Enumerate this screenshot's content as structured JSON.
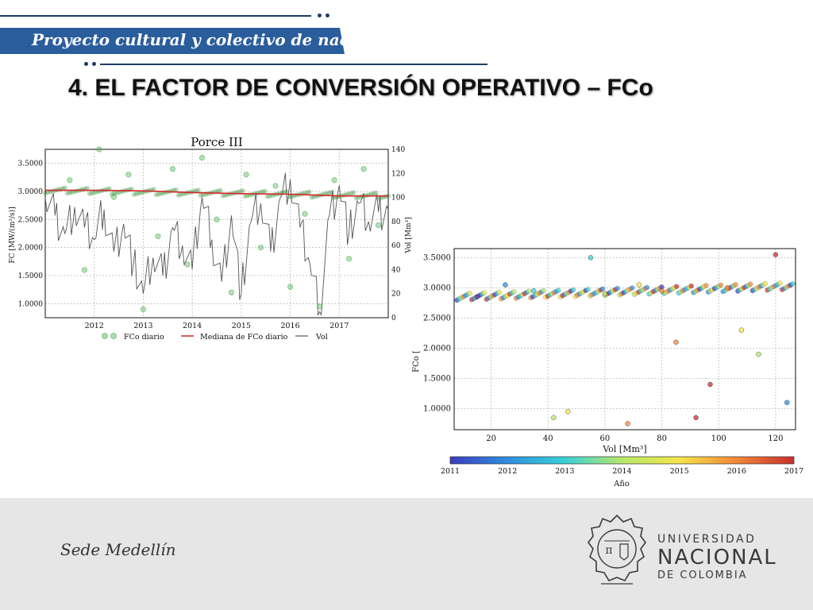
{
  "header": {
    "banner_text": "Proyecto cultural y colectivo de nación",
    "title": "4. EL FACTOR DE CONVERSIÓN OPERATIVO – FCo"
  },
  "footer": {
    "sede": "Sede Medellín",
    "logo_line1": "UNIVERSIDAD",
    "logo_line2": "NACIONAL",
    "logo_line3": "DE COLOMBIA"
  },
  "colors": {
    "banner": "#2a5d9c",
    "footer_bg": "#e6e6e7",
    "fco_points": "#4caf50",
    "median": "#d62728",
    "vol_line": "#555555"
  },
  "chart_data": [
    {
      "type": "scatter",
      "title": "Porce III",
      "ylabel": "FC [MW/(m³/s)]",
      "y2label": "Vol [Mm³]",
      "x_ticks": [
        "2012",
        "2013",
        "2014",
        "2015",
        "2016",
        "2017"
      ],
      "x_range": [
        2011,
        2018
      ],
      "ylim": [
        0.75,
        3.75
      ],
      "y_ticks": [
        "3.5000",
        "3.0000",
        "2.5000",
        "2.0000",
        "1.5000",
        "1.0000"
      ],
      "y2lim": [
        0,
        140
      ],
      "y2_ticks": [
        "140",
        "120",
        "100",
        "80",
        "60",
        "40",
        "20",
        "0"
      ],
      "grid": true,
      "legend": [
        "FCo diario",
        "Mediana de FCo diario",
        "Vol"
      ],
      "legend_position": "bottom",
      "series": [
        {
          "name": "Mediana de FCo diario",
          "points": [
            [
              2011.0,
              3.02
            ],
            [
              2012.0,
              3.02
            ],
            [
              2013.0,
              3.01
            ],
            [
              2014.0,
              2.98
            ],
            [
              2015.0,
              2.96
            ],
            [
              2016.0,
              2.95
            ],
            [
              2017.0,
              2.92
            ],
            [
              2018.0,
              2.92
            ]
          ]
        },
        {
          "name": "Vol",
          "points": [
            [
              2011.0,
              100
            ],
            [
              2011.2,
              85
            ],
            [
              2011.4,
              70
            ],
            [
              2011.6,
              92
            ],
            [
              2011.8,
              75
            ],
            [
              2012.0,
              65
            ],
            [
              2012.2,
              90
            ],
            [
              2012.4,
              55
            ],
            [
              2012.6,
              78
            ],
            [
              2012.8,
              45
            ],
            [
              2013.0,
              20
            ],
            [
              2013.2,
              50
            ],
            [
              2013.4,
              35
            ],
            [
              2013.6,
              75
            ],
            [
              2013.8,
              60
            ],
            [
              2014.0,
              40
            ],
            [
              2014.2,
              100
            ],
            [
              2014.4,
              65
            ],
            [
              2014.6,
              30
            ],
            [
              2014.8,
              85
            ],
            [
              2015.0,
              20
            ],
            [
              2015.2,
              80
            ],
            [
              2015.4,
              95
            ],
            [
              2015.6,
              55
            ],
            [
              2015.8,
              100
            ],
            [
              2016.0,
              115
            ],
            [
              2016.2,
              75
            ],
            [
              2016.4,
              45
            ],
            [
              2016.6,
              5
            ],
            [
              2016.8,
              85
            ],
            [
              2017.0,
              110
            ],
            [
              2017.2,
              70
            ],
            [
              2017.4,
              95
            ],
            [
              2017.6,
              80
            ],
            [
              2017.8,
              88
            ],
            [
              2018.0,
              90
            ]
          ]
        },
        {
          "name": "FCo diario",
          "points": [
            [
              2011.5,
              3.2
            ],
            [
              2011.8,
              1.6
            ],
            [
              2012.1,
              3.75
            ],
            [
              2012.4,
              2.9
            ],
            [
              2012.7,
              3.3
            ],
            [
              2013.0,
              0.9
            ],
            [
              2013.3,
              2.2
            ],
            [
              2013.6,
              3.4
            ],
            [
              2013.9,
              1.7
            ],
            [
              2014.2,
              3.6
            ],
            [
              2014.5,
              2.5
            ],
            [
              2014.8,
              1.2
            ],
            [
              2015.1,
              3.3
            ],
            [
              2015.4,
              2.0
            ],
            [
              2015.7,
              3.1
            ],
            [
              2016.0,
              1.3
            ],
            [
              2016.3,
              2.6
            ],
            [
              2016.6,
              0.95
            ],
            [
              2016.9,
              3.2
            ],
            [
              2017.2,
              1.8
            ],
            [
              2017.5,
              3.4
            ],
            [
              2017.8,
              2.4
            ]
          ]
        }
      ]
    },
    {
      "type": "scatter",
      "xlabel": "Vol [Mm³]",
      "ylabel": "FCo [",
      "x_ticks": [
        "20",
        "40",
        "60",
        "80",
        "100",
        "120"
      ],
      "xlim": [
        7,
        127
      ],
      "ylim": [
        0.65,
        3.65
      ],
      "y_ticks": [
        "3.5000",
        "3.0000",
        "2.5000",
        "2.0000",
        "1.5000",
        "1.0000"
      ],
      "grid": true,
      "colorbar": {
        "label": "Año",
        "ticks": [
          "2011",
          "2012",
          "2013",
          "2014",
          "2015",
          "2016",
          "2017"
        ],
        "colormap": [
          "#3b3bbf",
          "#2f8fe0",
          "#39d0d6",
          "#b6e86a",
          "#f5e54a",
          "#f2863a",
          "#c7302e"
        ]
      },
      "points": [
        [
          15,
          2.85,
          2011
        ],
        [
          25,
          3.05,
          2012
        ],
        [
          35,
          2.95,
          2013
        ],
        [
          42,
          0.85,
          2014
        ],
        [
          47,
          0.95,
          2015
        ],
        [
          55,
          3.5,
          2013
        ],
        [
          60,
          2.9,
          2014
        ],
        [
          68,
          0.75,
          2016
        ],
        [
          72,
          3.05,
          2015
        ],
        [
          80,
          2.95,
          2016
        ],
        [
          85,
          2.1,
          2016
        ],
        [
          92,
          0.85,
          2017
        ],
        [
          97,
          1.4,
          2017
        ],
        [
          103,
          3.0,
          2016
        ],
        [
          108,
          2.3,
          2015
        ],
        [
          114,
          1.9,
          2014
        ],
        [
          120,
          3.55,
          2017
        ],
        [
          124,
          1.1,
          2012
        ]
      ]
    }
  ]
}
